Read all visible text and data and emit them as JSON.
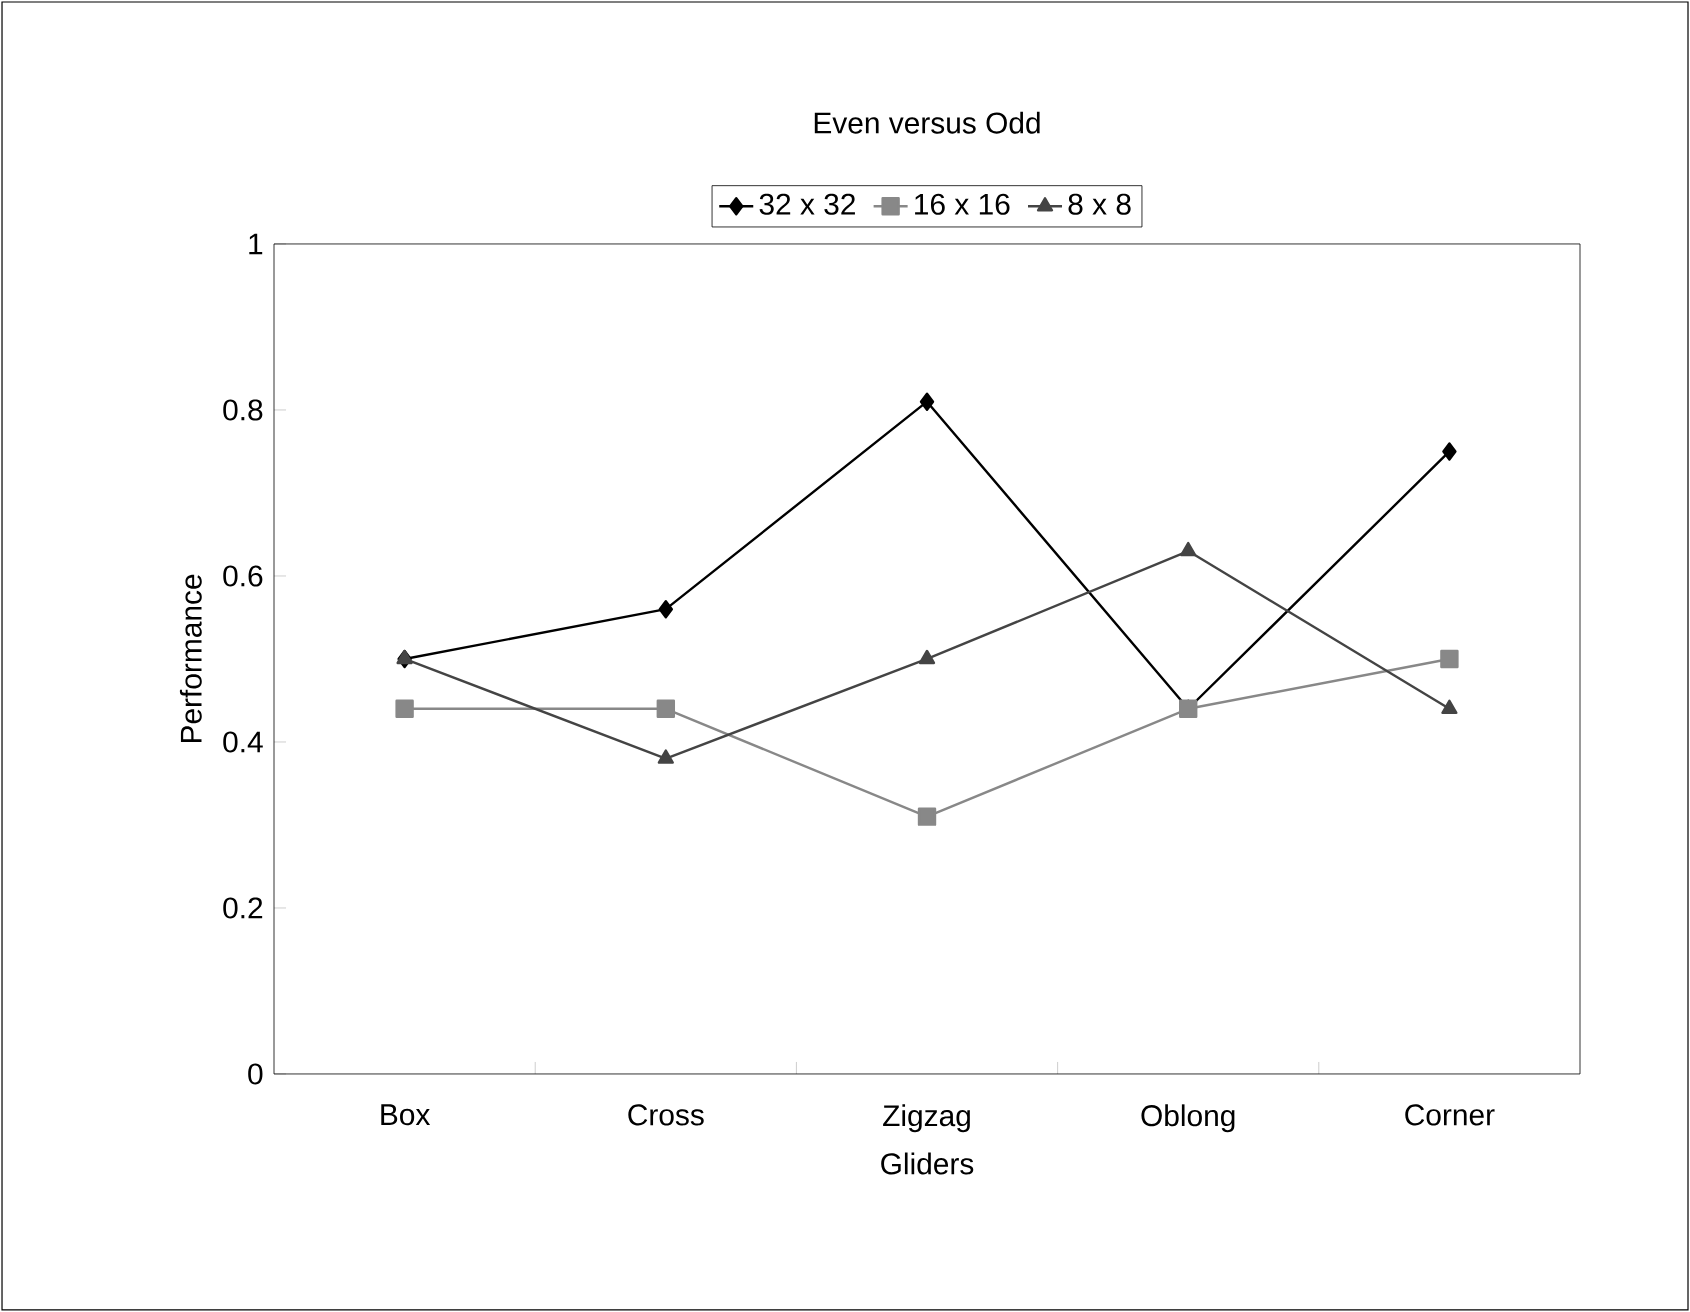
{
  "chart_data": {
    "type": "line",
    "title": "Even versus Odd",
    "xlabel": "Gliders",
    "ylabel": "Performance",
    "categories": [
      "Box",
      "Cross",
      "Zigzag",
      "Oblong",
      "Corner"
    ],
    "series": [
      {
        "name": "32 x 32",
        "color": "#000000",
        "marker": "diamond",
        "values": [
          0.5,
          0.56,
          0.81,
          0.44,
          0.75
        ]
      },
      {
        "name": "16 x 16",
        "color": "#888888",
        "marker": "square",
        "values": [
          0.44,
          0.44,
          0.31,
          0.44,
          0.5
        ]
      },
      {
        "name": "8 x 8",
        "color": "#444444",
        "marker": "triangle",
        "values": [
          0.5,
          0.38,
          0.5,
          0.63,
          0.44
        ]
      }
    ],
    "ylim": [
      0,
      1
    ],
    "yticks": [
      0,
      0.2,
      0.4,
      0.6,
      0.8,
      1
    ],
    "legend": "top",
    "grid": false,
    "line_style": "solid"
  }
}
